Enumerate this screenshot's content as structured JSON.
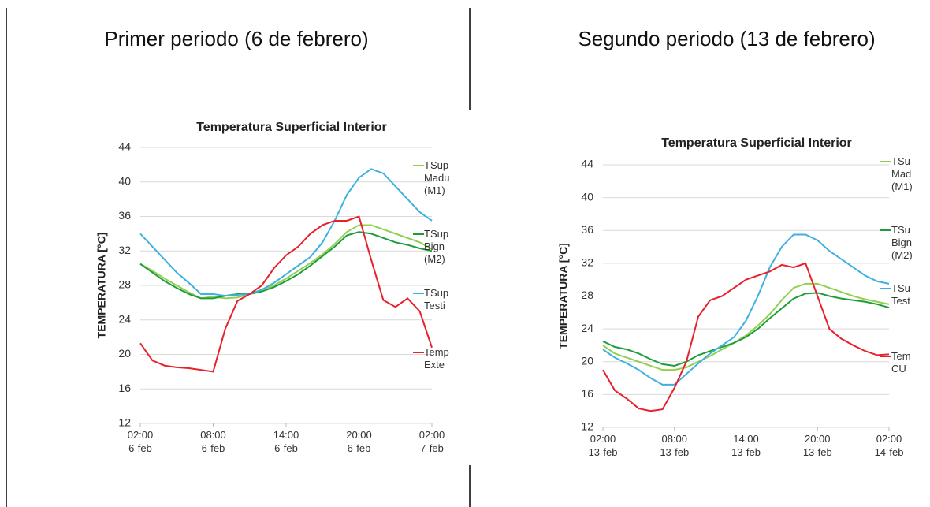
{
  "headings": [
    "Primer periodo (6 de febrero)",
    "Segundo periodo (13 de febrero)"
  ],
  "chart_data": [
    {
      "type": "line",
      "title": "Temperatura Superficial Interior",
      "y_label": "TEMPERATURA [°C]",
      "x": [
        0,
        1,
        2,
        3,
        4,
        5,
        6,
        7,
        8,
        9,
        10,
        11,
        12,
        13,
        14,
        15,
        16,
        17,
        18,
        19,
        20,
        21,
        22,
        23,
        24
      ],
      "xlim": [
        0,
        24
      ],
      "xticks": [
        {
          "value": 0,
          "label": "02:00 6-feb"
        },
        {
          "value": 6,
          "label": "08:00 6-feb"
        },
        {
          "value": 12,
          "label": "14:00 6-feb"
        },
        {
          "value": 18,
          "label": "20:00 6-feb"
        },
        {
          "value": 24,
          "label": "02:00 7-feb"
        }
      ],
      "ylim": [
        12,
        44
      ],
      "yticks": [
        12,
        16,
        20,
        24,
        28,
        32,
        36,
        40,
        44
      ],
      "grid": true,
      "series": [
        {
          "name": "TSup Madu (M1)",
          "color": "#92d050",
          "values": [
            30.5,
            29.7,
            28.8,
            28,
            27.2,
            26.5,
            26.7,
            26.5,
            26.6,
            27,
            27.5,
            28,
            28.8,
            29.7,
            30.6,
            31.6,
            32.8,
            34.2,
            35,
            35,
            34.5,
            34,
            33.5,
            33,
            32.2
          ]
        },
        {
          "name": "TSup Bign (M2)",
          "color": "#1e9e3a",
          "values": [
            30.5,
            29.5,
            28.5,
            27.7,
            27,
            26.5,
            26.5,
            26.8,
            27,
            27,
            27.3,
            27.8,
            28.5,
            29.3,
            30.3,
            31.4,
            32.5,
            33.8,
            34.2,
            34,
            33.5,
            33,
            32.7,
            32.3,
            32
          ]
        },
        {
          "name": "TSup Testi",
          "color": "#3fb0e0",
          "values": [
            34,
            32.5,
            31,
            29.5,
            28.3,
            27,
            27,
            26.8,
            26.9,
            27,
            27.5,
            28.3,
            29.3,
            30.3,
            31.3,
            33,
            35.5,
            38.5,
            40.5,
            41.5,
            41,
            39.5,
            38,
            36.5,
            35.5
          ]
        },
        {
          "name": "Temp Exte",
          "color": "#e8202a",
          "values": [
            21.3,
            19.3,
            18.7,
            18.5,
            18.4,
            18.2,
            18,
            23,
            26.2,
            27,
            28,
            30,
            31.5,
            32.5,
            34,
            35,
            35.5,
            35.5,
            36,
            31,
            26.3,
            25.5,
            26.5,
            25,
            20.8
          ]
        }
      ]
    },
    {
      "type": "line",
      "title": "Temperatura Superficial Interior",
      "y_label": "TEMPERATURA [°C]",
      "x": [
        0,
        1,
        2,
        3,
        4,
        5,
        6,
        7,
        8,
        9,
        10,
        11,
        12,
        13,
        14,
        15,
        16,
        17,
        18,
        19,
        20,
        21,
        22,
        23,
        24
      ],
      "xlim": [
        0,
        24
      ],
      "xticks": [
        {
          "value": 0,
          "label": "02:00 13-feb"
        },
        {
          "value": 6,
          "label": "08:00 13-feb"
        },
        {
          "value": 12,
          "label": "14:00 13-feb"
        },
        {
          "value": 18,
          "label": "20:00 13-feb"
        },
        {
          "value": 24,
          "label": "02:00 14-feb"
        }
      ],
      "ylim": [
        12,
        44
      ],
      "yticks": [
        12,
        16,
        20,
        24,
        28,
        32,
        36,
        40,
        44
      ],
      "grid": true,
      "series": [
        {
          "name": "TSu Mad (M1)",
          "color": "#92d050",
          "values": [
            22,
            21,
            20.5,
            20,
            19.5,
            19,
            19,
            19.3,
            20,
            20.7,
            21.5,
            22.3,
            23.2,
            24.4,
            25.8,
            27.5,
            29,
            29.5,
            29.5,
            29,
            28.5,
            28,
            27.6,
            27.3,
            27
          ]
        },
        {
          "name": "TSu Bign (M2)",
          "color": "#1e9e3a",
          "values": [
            22.5,
            21.8,
            21.5,
            21,
            20.3,
            19.7,
            19.5,
            20,
            20.8,
            21.3,
            21.8,
            22.3,
            23,
            24,
            25.3,
            26.5,
            27.7,
            28.3,
            28.4,
            28,
            27.7,
            27.5,
            27.3,
            27,
            26.6
          ]
        },
        {
          "name": "TSu Test",
          "color": "#3fb0e0",
          "values": [
            21.5,
            20.5,
            19.8,
            19,
            18,
            17.2,
            17.2,
            18.5,
            19.8,
            21,
            22,
            23,
            25,
            28,
            31.5,
            34,
            35.5,
            35.5,
            34.8,
            33.5,
            32.5,
            31.5,
            30.5,
            29.8,
            29.5
          ]
        },
        {
          "name": "Tem CU",
          "color": "#e8202a",
          "values": [
            19,
            16.5,
            15.5,
            14.3,
            14,
            14.2,
            16.8,
            20,
            25.5,
            27.5,
            28,
            29,
            30,
            30.5,
            31,
            31.8,
            31.5,
            32,
            28,
            24,
            22.8,
            22,
            21.3,
            20.8,
            20.9
          ]
        }
      ]
    }
  ]
}
